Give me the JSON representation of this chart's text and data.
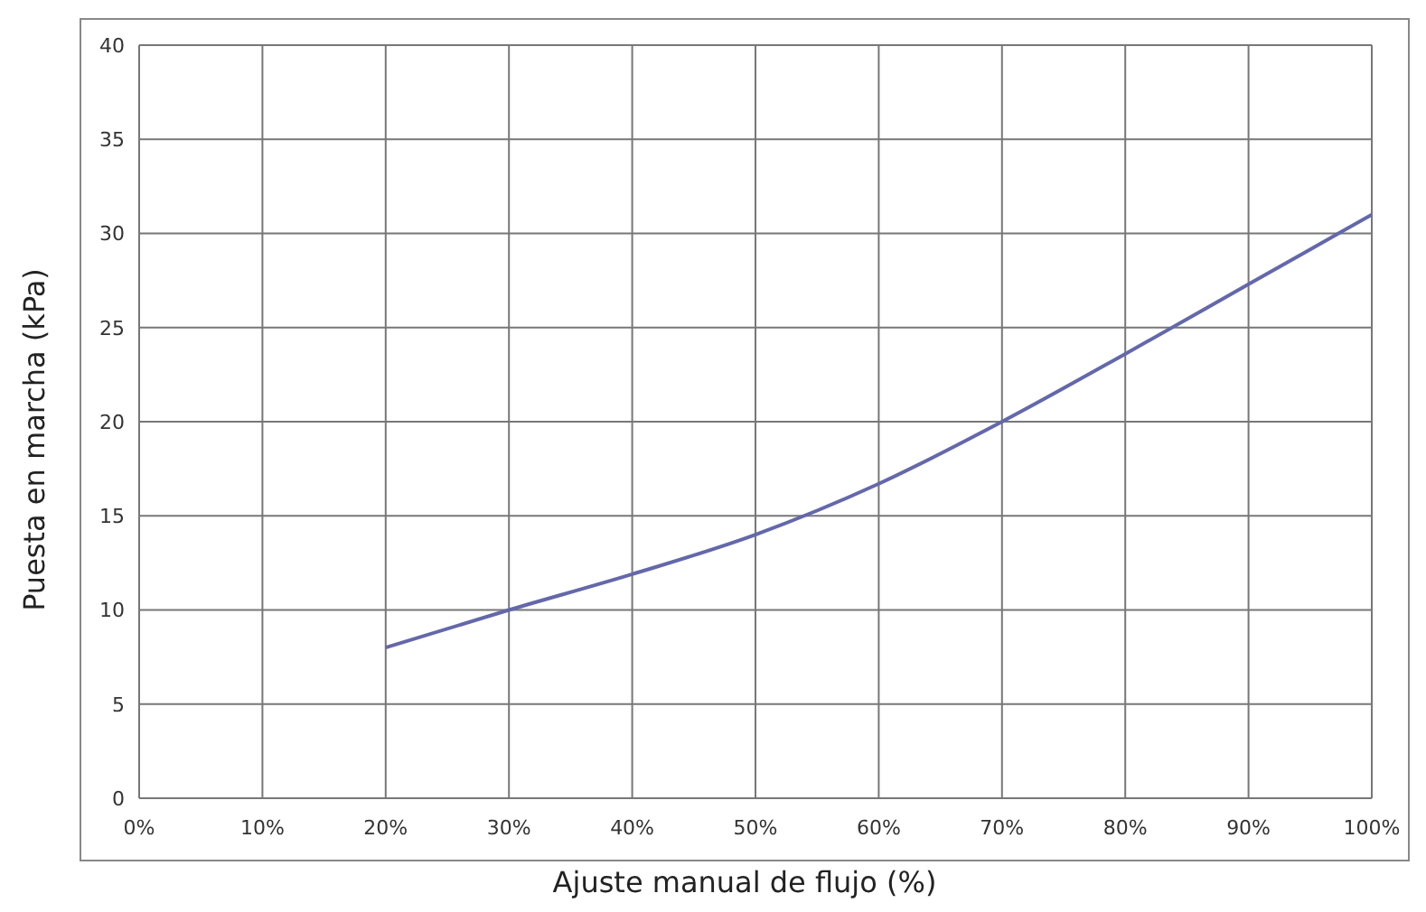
{
  "chart_data": {
    "type": "line",
    "xlabel": "Ajuste manual de flujo (%)",
    "ylabel": "Puesta en marcha (kPa)",
    "x": [
      20,
      30,
      40,
      50,
      60,
      70,
      80,
      90,
      100
    ],
    "series": [
      {
        "color": "#6468aa",
        "values": [
          8,
          10,
          11.9,
          14,
          16.7,
          20,
          23.6,
          27.3,
          31
        ]
      }
    ],
    "xlim": [
      0,
      100
    ],
    "xticks": [
      {
        "value": 0,
        "label": "0%"
      },
      {
        "value": 10,
        "label": "10%"
      },
      {
        "value": 20,
        "label": "20%"
      },
      {
        "value": 30,
        "label": "30%"
      },
      {
        "value": 40,
        "label": "40%"
      },
      {
        "value": 50,
        "label": "50%"
      },
      {
        "value": 60,
        "label": "60%"
      },
      {
        "value": 70,
        "label": "70%"
      },
      {
        "value": 80,
        "label": "80%"
      },
      {
        "value": 90,
        "label": "90%"
      },
      {
        "value": 100,
        "label": "100%"
      }
    ],
    "ylim": [
      0,
      40
    ],
    "yticks": [
      0,
      5,
      10,
      15,
      20,
      25,
      30,
      35,
      40
    ],
    "grid": true,
    "marker": "none",
    "line_style": "solid",
    "legend": false
  }
}
